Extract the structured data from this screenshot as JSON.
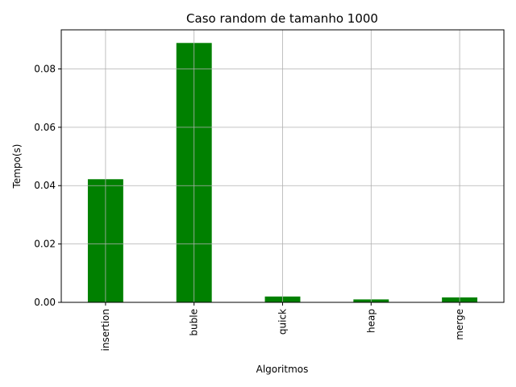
{
  "chart_data": {
    "type": "bar",
    "title": "Caso random de tamanho 1000",
    "xlabel": "Algoritmos",
    "ylabel": "Tempo(s)",
    "categories": [
      "insertion",
      "buble",
      "quick",
      "heap",
      "merge"
    ],
    "values": [
      0.0422,
      0.0889,
      0.002,
      0.001,
      0.0017
    ],
    "ylim": [
      0,
      0.0934
    ],
    "yticks": [
      0.0,
      0.02,
      0.04,
      0.06,
      0.08
    ],
    "ytick_labels": [
      "0.00",
      "0.02",
      "0.04",
      "0.06",
      "0.08"
    ],
    "grid": true,
    "bar_color": "#008000",
    "grid_color": "#b0b0b0"
  }
}
